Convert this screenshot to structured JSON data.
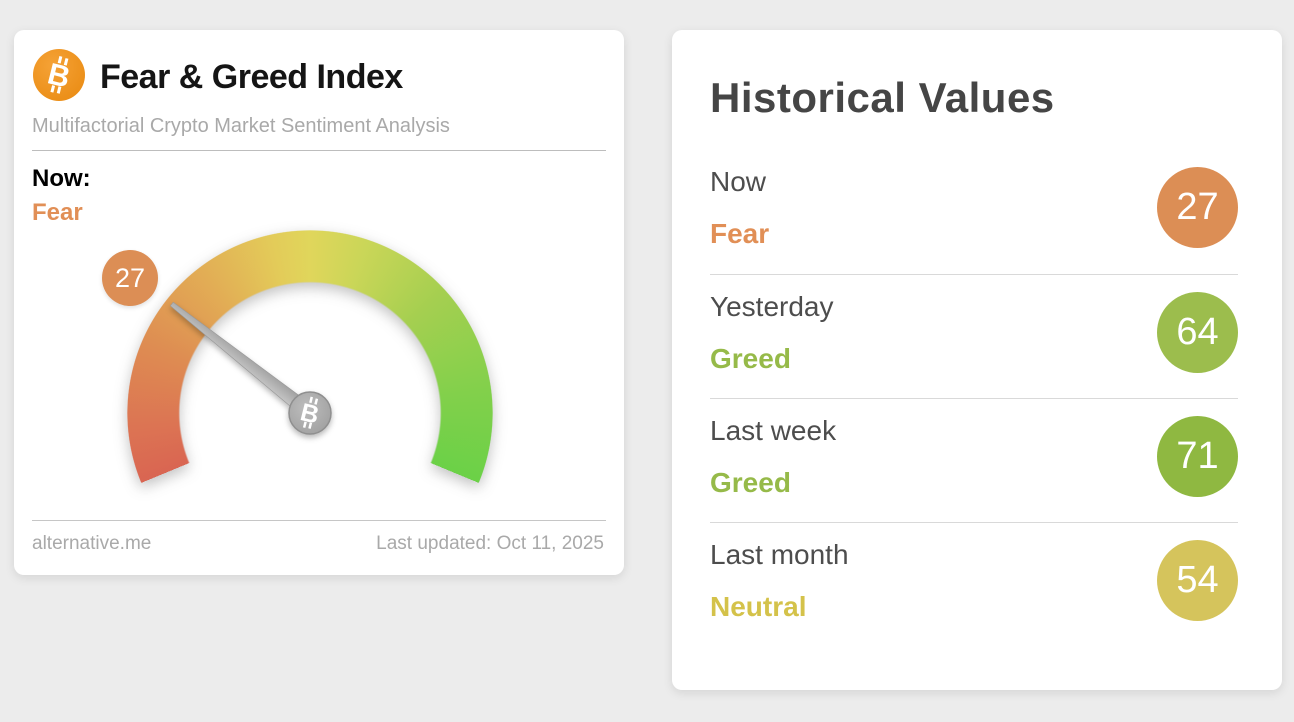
{
  "page": {
    "background": "#ececec"
  },
  "gauge_card": {
    "title": "Fear & Greed Index",
    "subtitle": "Multifactorial Crypto Market Sentiment Analysis",
    "now_label": "Now:",
    "now_classification": "Fear",
    "value_badge": "27",
    "footer_source": "alternative.me",
    "footer_updated": "Last updated: Oct 11, 2025",
    "colors": {
      "bitcoin_orange": "#ee901f",
      "badge_orange": "#dc8e55",
      "fear_text": "#e18f56"
    }
  },
  "historical_card": {
    "title": "Historical Values",
    "rows": [
      {
        "label": "Now",
        "classification": "Fear",
        "value": "27",
        "circle_color": "#dc8e55",
        "text_color": "#e18f56"
      },
      {
        "label": "Yesterday",
        "classification": "Greed",
        "value": "64",
        "circle_color": "#9cbd4d",
        "text_color": "#96ba49"
      },
      {
        "label": "Last week",
        "classification": "Greed",
        "value": "71",
        "circle_color": "#8fb841",
        "text_color": "#96ba49"
      },
      {
        "label": "Last month",
        "classification": "Neutral",
        "value": "54",
        "circle_color": "#d5c45c",
        "text_color": "#d4c24a"
      }
    ]
  },
  "chart_data": {
    "type": "gauge",
    "title": "Fear & Greed Index",
    "value": 27,
    "classification": "Fear",
    "range": [
      0,
      100
    ],
    "arc_sweep_degrees": 225,
    "color_scale": [
      "#d96552",
      "#de8c52",
      "#e3cb59",
      "#a5cf50",
      "#6bd147"
    ],
    "needle_color": "#b3b3b3",
    "historical": [
      {
        "label": "Now",
        "value": 27,
        "classification": "Fear"
      },
      {
        "label": "Yesterday",
        "value": 64,
        "classification": "Greed"
      },
      {
        "label": "Last week",
        "value": 71,
        "classification": "Greed"
      },
      {
        "label": "Last month",
        "value": 54,
        "classification": "Neutral"
      }
    ]
  }
}
